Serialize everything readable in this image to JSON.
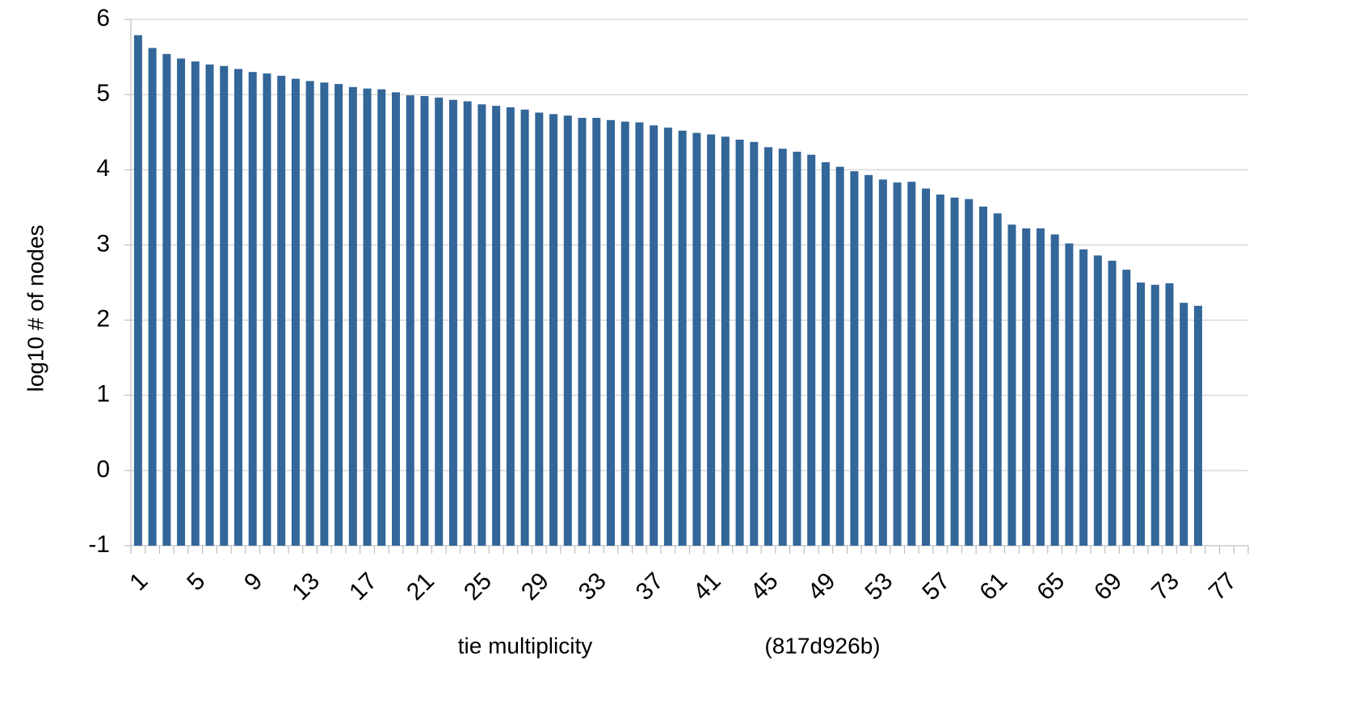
{
  "chart_data": {
    "type": "bar",
    "x_label": "tie multiplicity",
    "annotation": "(817d926b)",
    "y_label": "log10 # of nodes",
    "categories": [
      "1",
      null,
      null,
      null,
      "5",
      null,
      null,
      null,
      "9",
      null,
      null,
      null,
      "13",
      null,
      null,
      null,
      "17",
      null,
      null,
      null,
      "21",
      null,
      null,
      null,
      "25",
      null,
      null,
      null,
      "29",
      null,
      null,
      null,
      "33",
      null,
      null,
      null,
      "37",
      null,
      null,
      null,
      "41",
      null,
      null,
      null,
      "45",
      null,
      null,
      null,
      "49",
      null,
      null,
      null,
      "53",
      null,
      null,
      null,
      "57",
      null,
      null,
      null,
      "61",
      null,
      null,
      null,
      "65",
      null,
      null,
      null,
      "69",
      null,
      null,
      null,
      "73",
      null,
      null,
      null,
      "77",
      null
    ],
    "values": [
      5.79,
      5.62,
      5.54,
      5.48,
      5.44,
      5.4,
      5.38,
      5.34,
      5.3,
      5.28,
      5.25,
      5.21,
      5.18,
      5.16,
      5.14,
      5.1,
      5.08,
      5.07,
      5.03,
      4.99,
      4.98,
      4.96,
      4.93,
      4.91,
      4.87,
      4.85,
      4.83,
      4.8,
      4.76,
      4.74,
      4.72,
      4.69,
      4.69,
      4.66,
      4.64,
      4.63,
      4.59,
      4.56,
      4.52,
      4.49,
      4.47,
      4.44,
      4.4,
      4.37,
      4.3,
      4.28,
      4.24,
      4.2,
      4.1,
      4.04,
      3.98,
      3.93,
      3.87,
      3.83,
      3.84,
      3.75,
      3.67,
      3.63,
      3.61,
      3.51,
      3.42,
      3.27,
      3.22,
      3.22,
      3.14,
      3.02,
      2.94,
      2.86,
      2.79,
      2.67,
      2.5,
      2.47,
      2.49,
      2.23,
      2.19,
      null,
      null,
      null
    ],
    "color": "#336699",
    "ylim": [
      -1,
      6
    ],
    "yticks": [
      -1,
      0,
      1,
      2,
      3,
      4,
      5,
      6
    ],
    "grid": true
  }
}
